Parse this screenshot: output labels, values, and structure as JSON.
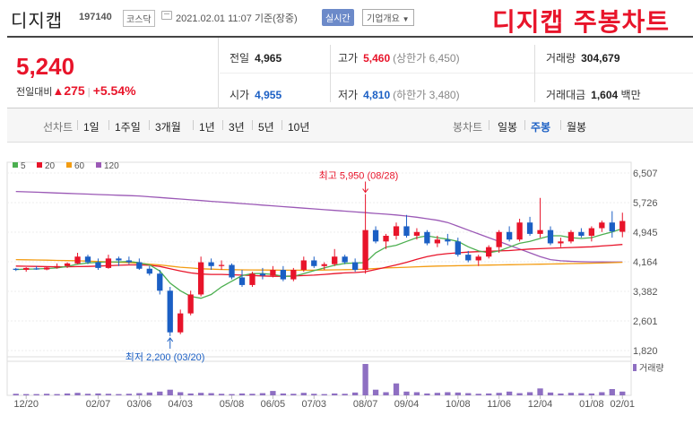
{
  "header": {
    "stock_name": "디지캡",
    "stock_code": "197140",
    "market": "코스닥",
    "date": "2021.02.01 11:07",
    "basis": "기준(장중)",
    "realtime_label": "실시간",
    "company_label": "기업개요",
    "company_icon": "chevron-down-icon",
    "handwritten_title": "디지캡 주봉차트"
  },
  "summary": {
    "price": "5,240",
    "change_label": "전일대비",
    "change_arrow": "▲",
    "change": "275",
    "change_pct": "+5.54%",
    "prev_close": {
      "label": "전일",
      "value": "4,965"
    },
    "open": {
      "label": "시가",
      "value": "4,955"
    },
    "high": {
      "label": "고가",
      "value": "5,460",
      "limit_label": "(상한가 6,450)"
    },
    "low": {
      "label": "저가",
      "value": "4,810",
      "limit_label": "(하한가 3,480)"
    },
    "volume": {
      "label": "거래량",
      "value": "304,679"
    },
    "amount": {
      "label": "거래대금",
      "value": "1,604",
      "unit": "백만"
    }
  },
  "tabs": {
    "line_label": "선차트",
    "line_items": [
      "1일",
      "1주일",
      "3개월",
      "1년",
      "3년",
      "5년",
      "10년"
    ],
    "candle_label": "봉차트",
    "candle_items": [
      "일봉",
      "주봉",
      "월봉"
    ],
    "active_candle": "주봉"
  },
  "colors": {
    "up": "#e8142a",
    "down": "#1b5fc4",
    "ma5": "#4caf50",
    "ma20": "#e8142a",
    "ma60": "#f39c12",
    "ma120": "#9b59b6",
    "volume": "#8e6fc2"
  },
  "chart_data": {
    "type": "candlestick",
    "legend": [
      {
        "name": "5",
        "color": "#4caf50"
      },
      {
        "name": "20",
        "color": "#e8142a"
      },
      {
        "name": "60",
        "color": "#f39c12"
      },
      {
        "name": "120",
        "color": "#9b59b6"
      }
    ],
    "y_ticks": [
      "6,507",
      "5,726",
      "4,945",
      "4,164",
      "3,382",
      "2,601",
      "1,820"
    ],
    "ylim": [
      1820,
      6507
    ],
    "x_ticks": [
      {
        "label": "12/20",
        "i": 1
      },
      {
        "label": "02/07",
        "i": 8
      },
      {
        "label": "03/06",
        "i": 12
      },
      {
        "label": "04/03",
        "i": 16
      },
      {
        "label": "05/08",
        "i": 21
      },
      {
        "label": "06/05",
        "i": 25
      },
      {
        "label": "07/03",
        "i": 29
      },
      {
        "label": "08/07",
        "i": 34
      },
      {
        "label": "09/04",
        "i": 38
      },
      {
        "label": "10/08",
        "i": 43
      },
      {
        "label": "11/06",
        "i": 47
      },
      {
        "label": "12/04",
        "i": 51
      },
      {
        "label": "01/08",
        "i": 56
      },
      {
        "label": "02/01",
        "i": 59
      }
    ],
    "high_annotation": "최고 5,950 (08/28)",
    "low_annotation": "최저 2,200 (03/20)",
    "volume_label": "거래량",
    "candles": [
      [
        3980,
        4000,
        3920,
        3950
      ],
      [
        3950,
        4020,
        3900,
        4000
      ],
      [
        3990,
        4050,
        3950,
        3960
      ],
      [
        3960,
        4040,
        3940,
        4010
      ],
      [
        4010,
        4120,
        3980,
        4050
      ],
      [
        4050,
        4150,
        4000,
        4120
      ],
      [
        4120,
        4400,
        4100,
        4300
      ],
      [
        4300,
        4350,
        4100,
        4150
      ],
      [
        4150,
        4250,
        3950,
        4000
      ],
      [
        4000,
        4350,
        3980,
        4250
      ],
      [
        4250,
        4300,
        4050,
        4200
      ],
      [
        4200,
        4300,
        4100,
        4150
      ],
      [
        4150,
        4250,
        3950,
        3980
      ],
      [
        3980,
        4050,
        3800,
        3850
      ],
      [
        3850,
        3950,
        3300,
        3400
      ],
      [
        3400,
        3500,
        2200,
        2300
      ],
      [
        2300,
        2900,
        2250,
        2800
      ],
      [
        2800,
        3400,
        2750,
        3300
      ],
      [
        3300,
        4300,
        3250,
        4150
      ],
      [
        4150,
        4250,
        3950,
        4050
      ],
      [
        4050,
        4200,
        3950,
        4080
      ],
      [
        4080,
        4120,
        3700,
        3750
      ],
      [
        3750,
        3950,
        3500,
        3550
      ],
      [
        3550,
        3900,
        3500,
        3850
      ],
      [
        3850,
        4000,
        3700,
        3800
      ],
      [
        3800,
        4050,
        3750,
        3950
      ],
      [
        3950,
        4050,
        3650,
        3700
      ],
      [
        3700,
        4000,
        3650,
        3950
      ],
      [
        3950,
        4300,
        3900,
        4200
      ],
      [
        4200,
        4300,
        4000,
        4050
      ],
      [
        4050,
        4150,
        3950,
        4100
      ],
      [
        4100,
        4500,
        4050,
        4300
      ],
      [
        4300,
        4350,
        4100,
        4150
      ],
      [
        4150,
        4250,
        3900,
        3950
      ],
      [
        3950,
        5950,
        3850,
        5000
      ],
      [
        5000,
        5100,
        4650,
        4700
      ],
      [
        4700,
        4900,
        4500,
        4850
      ],
      [
        4850,
        5200,
        4750,
        5100
      ],
      [
        5100,
        5400,
        4800,
        4850
      ],
      [
        4850,
        5050,
        4750,
        4950
      ],
      [
        4950,
        5000,
        4600,
        4650
      ],
      [
        4650,
        4850,
        4550,
        4750
      ],
      [
        4750,
        4900,
        4600,
        4700
      ],
      [
        4700,
        4800,
        4300,
        4350
      ],
      [
        4350,
        4450,
        4150,
        4200
      ],
      [
        4200,
        4350,
        4050,
        4300
      ],
      [
        4300,
        4600,
        4250,
        4550
      ],
      [
        4550,
        5000,
        4400,
        4950
      ],
      [
        4950,
        5100,
        4700,
        4750
      ],
      [
        4750,
        5300,
        4700,
        5200
      ],
      [
        5200,
        5350,
        4850,
        4900
      ],
      [
        4900,
        5850,
        4800,
        5000
      ],
      [
        5000,
        5100,
        4600,
        4650
      ],
      [
        4650,
        4800,
        4550,
        4700
      ],
      [
        4700,
        5000,
        4650,
        4950
      ],
      [
        4950,
        5050,
        4800,
        4850
      ],
      [
        4850,
        5100,
        4700,
        5050
      ],
      [
        5050,
        5250,
        4950,
        5200
      ],
      [
        5200,
        5500,
        4800,
        4965
      ],
      [
        4955,
        5460,
        4810,
        5240
      ]
    ],
    "ma5": [
      3960,
      3970,
      3975,
      3985,
      4000,
      4040,
      4100,
      4130,
      4150,
      4160,
      4160,
      4170,
      4140,
      4080,
      3920,
      3600,
      3400,
      3250,
      3200,
      3300,
      3500,
      3650,
      3800,
      3850,
      3850,
      3830,
      3780,
      3780,
      3850,
      3930,
      4000,
      4070,
      4120,
      4130,
      4140,
      4400,
      4550,
      4600,
      4700,
      4800,
      4850,
      4800,
      4760,
      4700,
      4560,
      4450,
      4400,
      4450,
      4550,
      4650,
      4700,
      4780,
      4850,
      4850,
      4800,
      4780,
      4800,
      4880,
      4950,
      5040
    ],
    "ma20": [
      4050,
      4045,
      4040,
      4035,
      4030,
      4030,
      4035,
      4040,
      4050,
      4060,
      4070,
      4080,
      4080,
      4070,
      4040,
      3980,
      3920,
      3870,
      3840,
      3830,
      3830,
      3820,
      3810,
      3800,
      3790,
      3780,
      3780,
      3790,
      3800,
      3810,
      3830,
      3850,
      3870,
      3880,
      3900,
      3960,
      4020,
      4080,
      4150,
      4230,
      4300,
      4350,
      4380,
      4400,
      4420,
      4430,
      4440,
      4450,
      4460,
      4480,
      4500,
      4510,
      4520,
      4530,
      4540,
      4550,
      4560,
      4580,
      4600,
      4620
    ],
    "ma60": [
      4220,
      4215,
      4210,
      4205,
      4200,
      4195,
      4190,
      4180,
      4170,
      4160,
      4150,
      4140,
      4120,
      4100,
      4080,
      4050,
      4020,
      4000,
      3980,
      3970,
      3960,
      3955,
      3950,
      3948,
      3945,
      3943,
      3942,
      3941,
      3940,
      3942,
      3945,
      3950,
      3955,
      3960,
      3970,
      3985,
      4000,
      4010,
      4020,
      4030,
      4040,
      4050,
      4055,
      4060,
      4065,
      4070,
      4075,
      4080,
      4085,
      4090,
      4095,
      4100,
      4105,
      4110,
      4115,
      4120,
      4125,
      4130,
      4140,
      4150
    ],
    "ma120": [
      6020,
      6010,
      6000,
      5990,
      5980,
      5970,
      5960,
      5950,
      5940,
      5930,
      5920,
      5910,
      5900,
      5880,
      5860,
      5840,
      5820,
      5800,
      5780,
      5760,
      5740,
      5720,
      5700,
      5680,
      5660,
      5640,
      5620,
      5600,
      5580,
      5560,
      5540,
      5520,
      5500,
      5480,
      5460,
      5440,
      5420,
      5400,
      5370,
      5340,
      5300,
      5260,
      5200,
      5100,
      5000,
      4900,
      4800,
      4700,
      4600,
      4500,
      4400,
      4300,
      4220,
      4190,
      4175,
      4165,
      4160,
      4158,
      4157,
      4156
    ],
    "volume": [
      5,
      4,
      4,
      5,
      4,
      6,
      8,
      5,
      6,
      5,
      4,
      5,
      7,
      9,
      12,
      18,
      10,
      6,
      8,
      7,
      5,
      4,
      6,
      5,
      7,
      14,
      6,
      5,
      8,
      5,
      4,
      6,
      5,
      9,
      100,
      18,
      10,
      38,
      12,
      10,
      6,
      8,
      10,
      9,
      7,
      5,
      6,
      8,
      12,
      7,
      10,
      22,
      9,
      6,
      8,
      7,
      6,
      10,
      20,
      12
    ]
  }
}
